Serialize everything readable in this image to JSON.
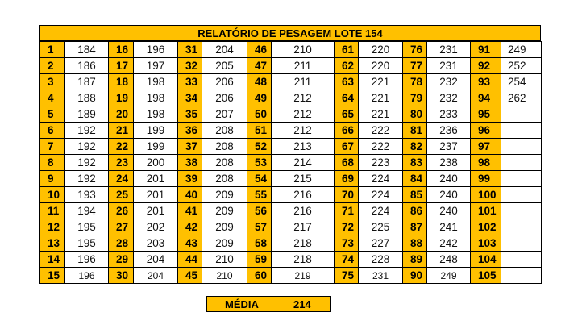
{
  "title": "RELATÓRIO DE PESAGEM LOTE 154",
  "columns": [
    {
      "indices": [
        "1",
        "2",
        "3",
        "4",
        "5",
        "6",
        "7",
        "8",
        "9",
        "10",
        "11",
        "12",
        "13",
        "14",
        "15"
      ],
      "weights": [
        "184",
        "186",
        "187",
        "188",
        "189",
        "192",
        "192",
        "192",
        "192",
        "193",
        "194",
        "195",
        "195",
        "196",
        "196"
      ]
    },
    {
      "indices": [
        "16",
        "17",
        "18",
        "19",
        "20",
        "21",
        "22",
        "23",
        "24",
        "25",
        "26",
        "27",
        "28",
        "29",
        "30"
      ],
      "weights": [
        "196",
        "197",
        "198",
        "198",
        "198",
        "199",
        "199",
        "200",
        "201",
        "201",
        "201",
        "202",
        "203",
        "204",
        "204"
      ]
    },
    {
      "indices": [
        "31",
        "32",
        "33",
        "34",
        "35",
        "36",
        "37",
        "38",
        "39",
        "40",
        "41",
        "42",
        "43",
        "44",
        "45"
      ],
      "weights": [
        "204",
        "205",
        "206",
        "206",
        "207",
        "208",
        "208",
        "208",
        "208",
        "209",
        "209",
        "209",
        "209",
        "210",
        "210"
      ]
    },
    {
      "indices": [
        "46",
        "47",
        "48",
        "49",
        "50",
        "51",
        "52",
        "53",
        "54",
        "55",
        "56",
        "57",
        "58",
        "59",
        "60"
      ],
      "weights": [
        "210",
        "211",
        "211",
        "212",
        "212",
        "212",
        "213",
        "214",
        "215",
        "216",
        "216",
        "217",
        "218",
        "218",
        "219"
      ]
    },
    {
      "indices": [
        "61",
        "62",
        "63",
        "64",
        "65",
        "66",
        "67",
        "68",
        "69",
        "70",
        "71",
        "72",
        "73",
        "74",
        "75"
      ],
      "weights": [
        "220",
        "220",
        "221",
        "221",
        "221",
        "222",
        "222",
        "223",
        "224",
        "224",
        "224",
        "225",
        "227",
        "228",
        "231"
      ]
    },
    {
      "indices": [
        "76",
        "77",
        "78",
        "79",
        "80",
        "81",
        "82",
        "83",
        "84",
        "85",
        "86",
        "87",
        "88",
        "89",
        "90"
      ],
      "weights": [
        "231",
        "231",
        "232",
        "232",
        "233",
        "236",
        "237",
        "238",
        "240",
        "240",
        "240",
        "241",
        "242",
        "248",
        "249"
      ]
    },
    {
      "indices": [
        "91",
        "92",
        "93",
        "94",
        "95",
        "96",
        "97",
        "98",
        "99",
        "100",
        "101",
        "102",
        "103",
        "104",
        "105"
      ],
      "weights": [
        "249",
        "252",
        "254",
        "262",
        "",
        "",
        "",
        "",
        "",
        "",
        "",
        "",
        "",
        "",
        ""
      ]
    }
  ],
  "summary": {
    "label": "MÉDIA",
    "value": "214"
  }
}
